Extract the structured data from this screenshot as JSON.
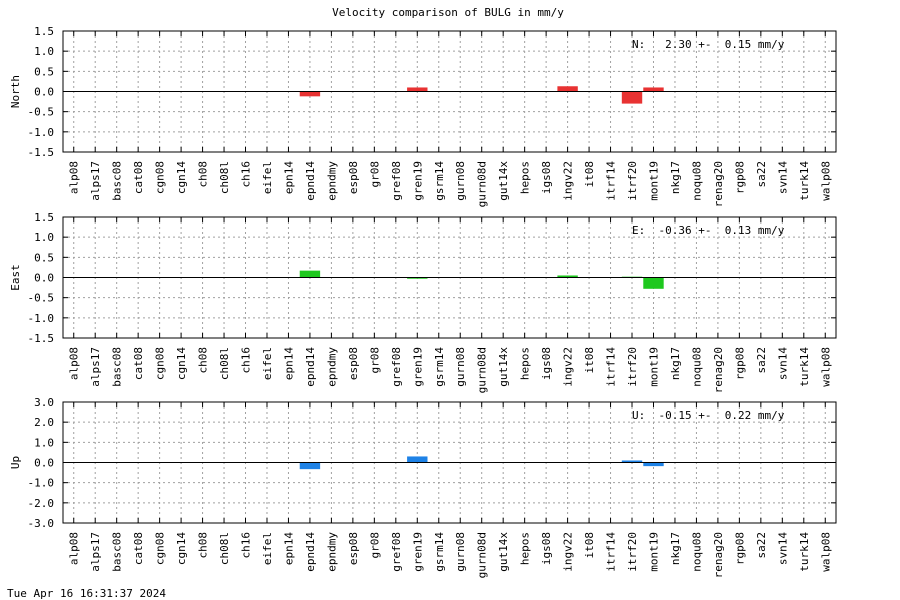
{
  "title": "Velocity comparison of BULG in mm/y",
  "footer": "Tue Apr 16 16:31:37 2024",
  "chart_data": [
    {
      "type": "bar",
      "ylabel": "North",
      "stat": "N:   2.30 +-  0.15 mm/y",
      "ylim": [
        -1.5,
        1.5
      ],
      "yticks": [
        -1.5,
        -1.0,
        -0.5,
        0.0,
        0.5,
        1.0,
        1.5
      ],
      "ytick_labels": [
        "-1.5",
        "-1.0",
        "-0.5",
        "0.0",
        "0.5",
        "1.0",
        "1.5"
      ],
      "color": "#e83232",
      "grid": true,
      "categories": [
        "alp08",
        "alps17",
        "basc08",
        "cat08",
        "cgn08",
        "cgn14",
        "ch08",
        "ch08l",
        "ch16",
        "eifel",
        "epn14",
        "epnd14",
        "epndmy",
        "esp08",
        "gr08",
        "gref08",
        "gren19",
        "gsrm14",
        "gurn08",
        "gurn08d",
        "gut14x",
        "hepos",
        "igs08",
        "ingv22",
        "it08",
        "itrf14",
        "itrf20",
        "mont19",
        "nkg17",
        "noqu08",
        "renag20",
        "rgp08",
        "sa22",
        "svn14",
        "turk14",
        "walp08"
      ],
      "values": [
        0,
        0,
        0,
        0,
        0,
        0,
        0,
        0,
        0,
        0,
        0,
        -0.12,
        0,
        0,
        0,
        0,
        0.1,
        0,
        0,
        0,
        0,
        0,
        0,
        0.13,
        0,
        0,
        -0.3,
        0.1,
        0,
        0,
        0,
        0,
        0,
        0,
        0,
        0
      ]
    },
    {
      "type": "bar",
      "ylabel": "East",
      "stat": "E:  -0.36 +-  0.13 mm/y",
      "ylim": [
        -1.5,
        1.5
      ],
      "yticks": [
        -1.5,
        -1.0,
        -0.5,
        0.0,
        0.5,
        1.0,
        1.5
      ],
      "ytick_labels": [
        "-1.5",
        "-1.0",
        "-0.5",
        "0.0",
        "0.5",
        "1.0",
        "1.5"
      ],
      "color": "#1ec81e",
      "grid": true,
      "categories": [
        "alp08",
        "alps17",
        "basc08",
        "cat08",
        "cgn08",
        "cgn14",
        "ch08",
        "ch08l",
        "ch16",
        "eifel",
        "epn14",
        "epnd14",
        "epndmy",
        "esp08",
        "gr08",
        "gref08",
        "gren19",
        "gsrm14",
        "gurn08",
        "gurn08d",
        "gut14x",
        "hepos",
        "igs08",
        "ingv22",
        "it08",
        "itrf14",
        "itrf20",
        "mont19",
        "nkg17",
        "noqu08",
        "renag20",
        "rgp08",
        "sa22",
        "svn14",
        "turk14",
        "walp08"
      ],
      "values": [
        0,
        0,
        0,
        0,
        0,
        0,
        0,
        0,
        0,
        0,
        0,
        0.17,
        0,
        0,
        0,
        0,
        -0.03,
        0,
        0,
        0,
        0,
        0,
        0,
        0.05,
        0,
        0,
        0.02,
        -0.28,
        0,
        0,
        0,
        0,
        0,
        0,
        0,
        0
      ]
    },
    {
      "type": "bar",
      "ylabel": "Up",
      "stat": "U:  -0.15 +-  0.22 mm/y",
      "ylim": [
        -3.0,
        3.0
      ],
      "yticks": [
        -3.0,
        -2.0,
        -1.0,
        0.0,
        1.0,
        2.0,
        3.0
      ],
      "ytick_labels": [
        "-3.0",
        "-2.0",
        "-1.0",
        "0.0",
        "1.0",
        "2.0",
        "3.0"
      ],
      "color": "#1e82e6",
      "grid": true,
      "categories": [
        "alp08",
        "alps17",
        "basc08",
        "cat08",
        "cgn08",
        "cgn14",
        "ch08",
        "ch08l",
        "ch16",
        "eifel",
        "epn14",
        "epnd14",
        "epndmy",
        "esp08",
        "gr08",
        "gref08",
        "gren19",
        "gsrm14",
        "gurn08",
        "gurn08d",
        "gut14x",
        "hepos",
        "igs08",
        "ingv22",
        "it08",
        "itrf14",
        "itrf20",
        "mont19",
        "nkg17",
        "noqu08",
        "renag20",
        "rgp08",
        "sa22",
        "svn14",
        "turk14",
        "walp08"
      ],
      "values": [
        0,
        0,
        0,
        0,
        0,
        0,
        0,
        0,
        0,
        0,
        0,
        -0.33,
        0,
        0,
        0,
        0,
        0.3,
        0,
        0,
        0,
        0,
        0,
        0,
        0,
        0,
        0,
        0.1,
        -0.18,
        0,
        0,
        0,
        0,
        0,
        0,
        0,
        0
      ]
    }
  ]
}
